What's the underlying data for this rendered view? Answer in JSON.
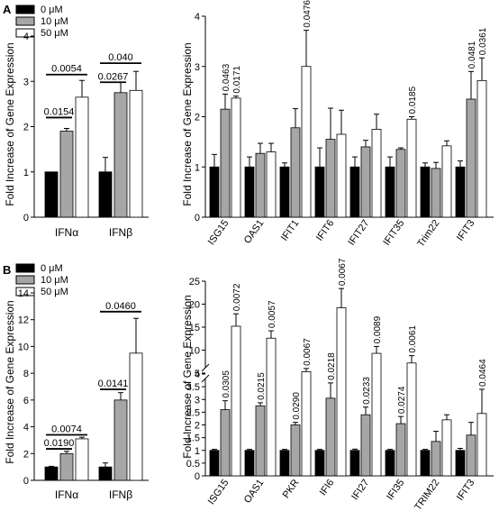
{
  "panel_labels": [
    "A",
    "B"
  ],
  "ylabel": "Fold Increase of Gene Expression",
  "legend": [
    {
      "label": "0 μM",
      "color": "#000000"
    },
    {
      "label": "10 μM",
      "color": "#a6a6a6"
    },
    {
      "label": "50 μM",
      "color": "#ffffff"
    }
  ],
  "chart_data": [
    {
      "panel": "A",
      "type": "bar",
      "ylim": [
        0,
        4
      ],
      "yticks": [
        0,
        1,
        2,
        3,
        4
      ],
      "categories": [
        "IFNα",
        "IFNβ"
      ],
      "series": [
        {
          "name": "0 μM",
          "values": [
            1.0,
            1.0
          ],
          "errors": [
            0,
            0.32
          ]
        },
        {
          "name": "10 μM",
          "values": [
            1.9,
            2.75
          ],
          "errors": [
            0.06,
            0.23
          ]
        },
        {
          "name": "50 μM",
          "values": [
            2.65,
            2.8
          ],
          "errors": [
            0.37,
            0.42
          ]
        }
      ],
      "pvalues": [
        {
          "cat": 0,
          "from": 0,
          "to": 1,
          "label": "0.0154",
          "y": 2.2
        },
        {
          "cat": 0,
          "from": 0,
          "to": 2,
          "label": "0.0054",
          "y": 3.15
        },
        {
          "cat": 1,
          "from": 0,
          "to": 1,
          "label": "0.0267",
          "y": 2.98
        },
        {
          "cat": 1,
          "from": 0,
          "to": 2,
          "label": "0.040",
          "y": 3.4
        }
      ]
    },
    {
      "panel": "A",
      "type": "bar",
      "ylim": [
        0,
        4
      ],
      "yticks": [
        0,
        1,
        2,
        3,
        4
      ],
      "categories": [
        "ISG15",
        "OAS1",
        "IFIT1",
        "IFIT6",
        "IFIT27",
        "IFIT35",
        "Trim22",
        "IFIT3"
      ],
      "series": [
        {
          "name": "0 μM",
          "values": [
            1.0,
            1.0,
            1.0,
            1.0,
            1.0,
            1.0,
            1.0,
            1.0
          ],
          "errors": [
            0.25,
            0.2,
            0.08,
            0.38,
            0.2,
            0.2,
            0.08,
            0.12
          ]
        },
        {
          "name": "10 μM",
          "values": [
            2.15,
            1.27,
            1.78,
            1.55,
            1.4,
            1.35,
            0.97,
            2.35
          ],
          "errors": [
            0.3,
            0.2,
            0.38,
            0.62,
            0.13,
            0.03,
            0.12,
            0.55
          ]
        },
        {
          "name": "50 μM",
          "values": [
            2.37,
            1.3,
            3.0,
            1.65,
            1.75,
            1.95,
            1.42,
            2.72
          ],
          "errors": [
            0.04,
            0.17,
            0.72,
            0.48,
            0.3,
            0.05,
            0.1,
            0.45
          ]
        }
      ],
      "pvalues": [
        {
          "cat": 0,
          "bar": 1,
          "label": "0.0463"
        },
        {
          "cat": 0,
          "bar": 2,
          "label": "0.0171"
        },
        {
          "cat": 2,
          "bar": 2,
          "label": "0.0476"
        },
        {
          "cat": 5,
          "bar": 2,
          "label": "0.0185"
        },
        {
          "cat": 7,
          "bar": 1,
          "label": "0.0481"
        },
        {
          "cat": 7,
          "bar": 2,
          "label": "0.0361"
        }
      ]
    },
    {
      "panel": "B",
      "type": "bar",
      "ylim": [
        0,
        14
      ],
      "yticks": [
        0,
        2,
        4,
        6,
        8,
        10,
        12,
        14
      ],
      "categories": [
        "IFNα",
        "IFNβ"
      ],
      "series": [
        {
          "name": "0 μM",
          "values": [
            1.0,
            1.0
          ],
          "errors": [
            0.05,
            0.3
          ]
        },
        {
          "name": "10 μM",
          "values": [
            2.0,
            6.0
          ],
          "errors": [
            0.17,
            0.55
          ]
        },
        {
          "name": "50 μM",
          "values": [
            3.1,
            9.5
          ],
          "errors": [
            0.12,
            2.6
          ]
        }
      ],
      "pvalues": [
        {
          "cat": 0,
          "from": 0,
          "to": 1,
          "label": "0.0190",
          "y": 2.35
        },
        {
          "cat": 0,
          "from": 0,
          "to": 2,
          "label": "0.0074",
          "y": 3.4
        },
        {
          "cat": 1,
          "from": 0,
          "to": 1,
          "label": "0.0141",
          "y": 6.8
        },
        {
          "cat": 1,
          "from": 0,
          "to": 2,
          "label": "0.0460",
          "y": 12.6
        }
      ]
    },
    {
      "panel": "B",
      "type": "bar",
      "ylim": [
        0,
        25
      ],
      "yticks": [
        0,
        0.5,
        1,
        1.5,
        2,
        2.5,
        3,
        3.5,
        4,
        5,
        10,
        15,
        20,
        25
      ],
      "axis_break": [
        4,
        5
      ],
      "categories": [
        "ISG15",
        "OAS1",
        "PKR",
        "IFI6",
        "IFI27",
        "IFI35",
        "TRIM22",
        "IFIT3"
      ],
      "series": [
        {
          "name": "0 μM",
          "values": [
            1.0,
            1.0,
            1.0,
            1.0,
            1.0,
            1.0,
            1.0,
            1.0
          ],
          "errors": [
            0.04,
            0.04,
            0.04,
            0.04,
            0.05,
            0.04,
            0.04,
            0.08
          ]
        },
        {
          "name": "10 μM",
          "values": [
            2.6,
            2.75,
            2.0,
            3.05,
            2.4,
            2.05,
            1.35,
            1.6
          ]
        },
        {
          "name": "50 μM",
          "values": [
            15.2,
            12.6,
            5.3,
            19.2,
            9.3,
            7.2,
            2.2,
            2.45
          ]
        }
      ],
      "errors_10": [
        0.35,
        0.12,
        0.1,
        0.6,
        0.3,
        0.28,
        0.4,
        0.5
      ],
      "errors_50": [
        2.7,
        1.6,
        0.7,
        4.2,
        1.5,
        1.6,
        0.2,
        0.95
      ],
      "pvalues": [
        {
          "cat": 0,
          "bar": 1,
          "label": "0.0305"
        },
        {
          "cat": 0,
          "bar": 2,
          "label": "0.0072"
        },
        {
          "cat": 1,
          "bar": 1,
          "label": "0.0215"
        },
        {
          "cat": 1,
          "bar": 2,
          "label": "0.0057"
        },
        {
          "cat": 2,
          "bar": 1,
          "label": "0.0290"
        },
        {
          "cat": 2,
          "bar": 2,
          "label": "0.0067"
        },
        {
          "cat": 3,
          "bar": 1,
          "label": "0.0218"
        },
        {
          "cat": 3,
          "bar": 2,
          "label": "0.0067"
        },
        {
          "cat": 4,
          "bar": 1,
          "label": "0.0233"
        },
        {
          "cat": 4,
          "bar": 2,
          "label": "0.0089"
        },
        {
          "cat": 5,
          "bar": 1,
          "label": "0.0274"
        },
        {
          "cat": 5,
          "bar": 2,
          "label": "0.0061"
        },
        {
          "cat": 7,
          "bar": 2,
          "label": "0.0464"
        }
      ]
    }
  ]
}
